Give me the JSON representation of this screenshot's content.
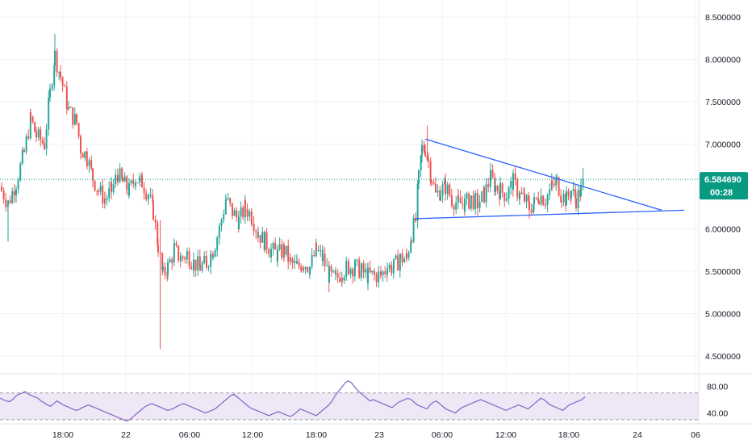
{
  "colors": {
    "up": "#26a69a",
    "down": "#ef5350",
    "trendline": "#2962ff",
    "price_line": "#089981",
    "rsi_line": "#7e57c2",
    "rsi_band": "#ede7f6",
    "grid": "#f0f3fa",
    "axis_text": "#131722",
    "badge_bg": "#089981"
  },
  "price_axis": {
    "ticks": [
      "8.500000",
      "8.000000",
      "7.500000",
      "7.000000",
      "6.000000",
      "5.500000",
      "5.000000",
      "4.500000"
    ]
  },
  "rsi_axis": {
    "ticks": [
      "80.00",
      "40.00"
    ]
  },
  "time_axis": {
    "ticks": [
      "18:00",
      "22",
      "06:00",
      "12:00",
      "18:00",
      "23",
      "06:00",
      "12:00",
      "18:00",
      "24",
      "06"
    ]
  },
  "last_price": {
    "value": "6.584690",
    "countdown": "00:28"
  },
  "chart_data": {
    "type": "candlestick",
    "timeframe_note": "",
    "ylim": [
      4.3,
      8.7
    ],
    "price_line": 6.58469,
    "trendlines": [
      {
        "from": [
          88,
          7.06
        ],
        "to": [
          166,
          6.22
        ]
      },
      {
        "from": [
          88,
          6.12
        ],
        "to": [
          172,
          6.22
        ]
      }
    ],
    "rsi": {
      "ylim": [
        25,
        95
      ],
      "band": [
        30,
        70
      ],
      "values": [
        62,
        60,
        58,
        57,
        60,
        65,
        68,
        70,
        72,
        68,
        66,
        64,
        62,
        58,
        55,
        52,
        50,
        54,
        58,
        55,
        52,
        50,
        48,
        46,
        44,
        45,
        48,
        50,
        52,
        50,
        48,
        46,
        44,
        42,
        40,
        38,
        36,
        34,
        32,
        30,
        28,
        30,
        34,
        38,
        42,
        46,
        50,
        52,
        54,
        52,
        50,
        48,
        46,
        44,
        45,
        47,
        50,
        52,
        54,
        52,
        50,
        48,
        46,
        44,
        42,
        40,
        42,
        44,
        46,
        50,
        54,
        58,
        62,
        66,
        68,
        64,
        60,
        56,
        52,
        48,
        46,
        44,
        42,
        40,
        38,
        36,
        38,
        40,
        42,
        40,
        38,
        36,
        35,
        38,
        42,
        46,
        44,
        42,
        40,
        38,
        36,
        40,
        44,
        48,
        52,
        58,
        66,
        72,
        78,
        84,
        88,
        86,
        80,
        74,
        70,
        66,
        62,
        58,
        60,
        58,
        56,
        54,
        52,
        50,
        48,
        52,
        56,
        58,
        60,
        62,
        60,
        56,
        52,
        50,
        48,
        46,
        52,
        56,
        58,
        54,
        50,
        46,
        44,
        42,
        40,
        44,
        48,
        50,
        52,
        54,
        56,
        58,
        60,
        58,
        56,
        54,
        52,
        50,
        48,
        46,
        44,
        46,
        48,
        50,
        52,
        50,
        48,
        46,
        50,
        54,
        58,
        62,
        60,
        56,
        52,
        50,
        48,
        46,
        44,
        48,
        52,
        54,
        56,
        58,
        60,
        64
      ]
    },
    "x_labels": [
      "18:00",
      "22",
      "06:00",
      "12:00",
      "18:00",
      "23",
      "06:00",
      "12:00",
      "18:00",
      "24",
      "06"
    ]
  }
}
